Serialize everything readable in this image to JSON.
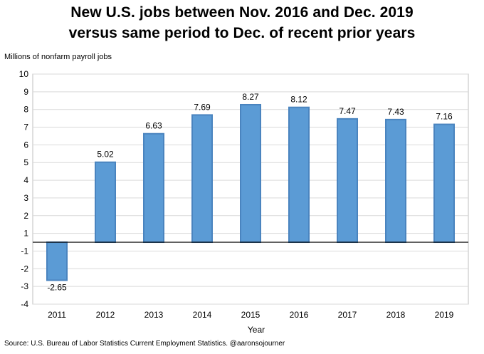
{
  "chart_data": {
    "type": "bar",
    "title_line1": "New U.S. jobs between Nov. 2016 and Dec. 2019",
    "title_line2": "versus same period to Dec. of recent prior years",
    "ylabel": "Millions of nonfarm payroll jobs",
    "xlabel": "Year",
    "categories": [
      "2011",
      "2012",
      "2013",
      "2014",
      "2015",
      "2016",
      "2017",
      "2018",
      "2019"
    ],
    "values": [
      -2.65,
      5.02,
      6.63,
      7.69,
      8.27,
      8.12,
      7.47,
      7.43,
      7.16
    ],
    "value_labels": [
      "-2.65",
      "5.02",
      "6.63",
      "7.69",
      "8.27",
      "8.12",
      "7.47",
      "7.43",
      "7.16"
    ],
    "yticks": [
      "-4",
      "-3",
      "-2",
      "-1",
      "1",
      "2",
      "3",
      "4",
      "5",
      "6",
      "7",
      "8",
      "9",
      "10"
    ],
    "ylim": [
      -4,
      10
    ],
    "grid": true,
    "bar_color": "#5b9bd5",
    "bar_edge_color": "#4a84bf",
    "source": "Source: U.S. Bureau of Labor Statistics Current Employment Statistics. @aaronsojourner"
  }
}
